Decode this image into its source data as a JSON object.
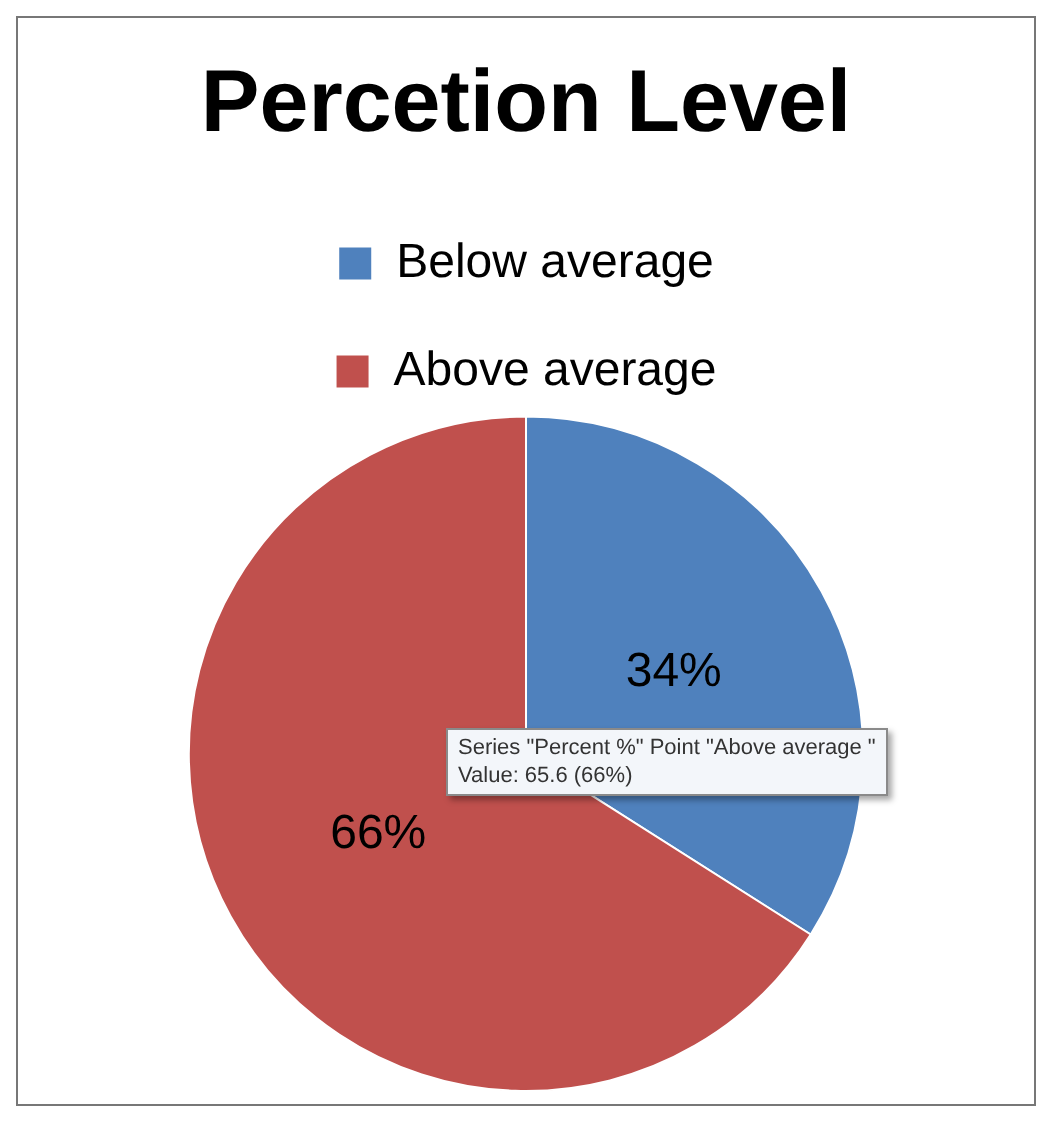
{
  "chart_data": {
    "type": "pie",
    "title": "Percetion Level",
    "categories": [
      "Below average",
      "Above average"
    ],
    "values": [
      34,
      66
    ],
    "colors": [
      "#4f81bd",
      "#c0504d"
    ],
    "value_labels": [
      "34%",
      "66%"
    ],
    "legend": "top",
    "annotations": [
      "Series \"Percent %\" Point \"Above average \"\nValue: 65.6 (66%)"
    ]
  }
}
